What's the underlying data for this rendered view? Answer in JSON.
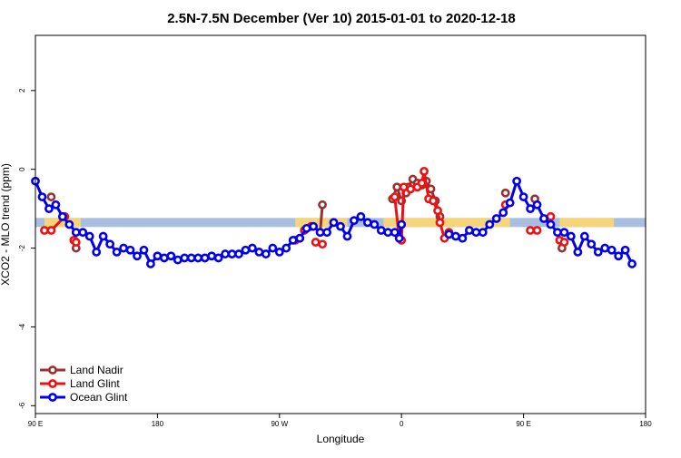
{
  "chart_data": {
    "type": "line",
    "title": "2.5N-7.5N December (Ver 10)   2015-01-01 to 2020-12-18",
    "xlabel": "Longitude",
    "ylabel": "XCO2 - MLO trend (ppm)",
    "xlim": [
      -90,
      180
    ],
    "ylim": [
      -6.2,
      3.4
    ],
    "x_ticks": [
      {
        "value": -90,
        "label": "90 E"
      },
      {
        "value": -36,
        "label": "180"
      },
      {
        "value": 18,
        "label": "90 W"
      },
      {
        "value": 72,
        "label": "0"
      },
      {
        "value": 126,
        "label": "90 E"
      },
      {
        "value": 180,
        "label": "180"
      }
    ],
    "y_ticks": [
      {
        "value": -6,
        "label": "-6"
      },
      {
        "value": -4,
        "label": "-4"
      },
      {
        "value": -2,
        "label": "-2"
      },
      {
        "value": 0,
        "label": "0"
      },
      {
        "value": 2,
        "label": "2"
      }
    ],
    "band": {
      "y": -1.35,
      "x_range": [
        -90,
        180
      ],
      "color": "#a8bfe0"
    },
    "land_bands": [
      {
        "x_range": [
          -86,
          -70
        ],
        "color": "#f5d47a"
      },
      {
        "x_range": [
          25,
          48
        ],
        "color": "#f5d47a"
      },
      {
        "x_range": [
          64,
          120
        ],
        "color": "#f5d47a"
      },
      {
        "x_range": [
          142,
          166
        ],
        "color": "#f5d47a"
      }
    ],
    "series": [
      {
        "name": "Land Nadir",
        "color": "#9b3030",
        "segments": [
          [
            {
              "x": -83,
              "y": -0.7
            }
          ],
          [
            {
              "x": -72,
              "y": -2.0
            }
          ],
          [
            {
              "x": 37,
              "y": -0.9
            },
            {
              "x": 36,
              "y": -1.6
            }
          ],
          [
            {
              "x": 68,
              "y": -0.75
            },
            {
              "x": 70,
              "y": -0.45
            },
            {
              "x": 72,
              "y": -0.8
            },
            {
              "x": 74,
              "y": -0.6
            },
            {
              "x": 75,
              "y": -0.45
            },
            {
              "x": 77,
              "y": -0.25
            },
            {
              "x": 79,
              "y": -0.35
            },
            {
              "x": 81,
              "y": -0.4
            },
            {
              "x": 83,
              "y": -0.3
            },
            {
              "x": 85,
              "y": -0.5
            },
            {
              "x": 87,
              "y": -0.8
            },
            {
              "x": 89,
              "y": -1.2
            }
          ],
          [
            {
              "x": 118,
              "y": -0.6
            }
          ],
          [
            {
              "x": 131,
              "y": -0.75
            }
          ],
          [
            {
              "x": 143,
              "y": -2.0
            }
          ]
        ]
      },
      {
        "name": "Land Glint",
        "color": "#ee1111",
        "segments": [
          [
            {
              "x": -86,
              "y": -1.55
            },
            {
              "x": -83,
              "y": -1.55
            },
            {
              "x": -77,
              "y": -1.2
            }
          ],
          [
            {
              "x": -73,
              "y": -1.8
            },
            {
              "x": -72,
              "y": -1.85
            }
          ],
          [
            {
              "x": 25,
              "y": -1.8
            },
            {
              "x": 27,
              "y": -1.75
            },
            {
              "x": 29,
              "y": -1.55
            },
            {
              "x": 32,
              "y": -1.45
            }
          ],
          [
            {
              "x": 34,
              "y": -1.85
            },
            {
              "x": 37,
              "y": -1.9
            }
          ],
          [
            {
              "x": 69,
              "y": -0.7
            },
            {
              "x": 71,
              "y": -1.75
            },
            {
              "x": 72,
              "y": -1.8
            },
            {
              "x": 73,
              "y": -0.45
            },
            {
              "x": 76,
              "y": -0.5
            },
            {
              "x": 79,
              "y": -0.45
            },
            {
              "x": 81,
              "y": -0.35
            },
            {
              "x": 82,
              "y": -0.05
            },
            {
              "x": 84,
              "y": -0.75
            },
            {
              "x": 86,
              "y": -0.8
            },
            {
              "x": 88,
              "y": -1.05
            },
            {
              "x": 89,
              "y": -1.35
            },
            {
              "x": 91,
              "y": -1.75
            },
            {
              "x": 93,
              "y": -1.6
            }
          ],
          [
            {
              "x": 118,
              "y": -0.9
            }
          ],
          [
            {
              "x": 129,
              "y": -1.55
            },
            {
              "x": 132,
              "y": -1.55
            }
          ],
          [
            {
              "x": 138,
              "y": -1.2
            }
          ],
          [
            {
              "x": 142,
              "y": -1.8
            },
            {
              "x": 144,
              "y": -1.85
            }
          ]
        ]
      },
      {
        "name": "Ocean Glint",
        "color": "#0000ee",
        "segments": [
          [
            {
              "x": -90,
              "y": -0.3
            },
            {
              "x": -87,
              "y": -0.7
            },
            {
              "x": -84,
              "y": -1.0
            },
            {
              "x": -81,
              "y": -0.9
            },
            {
              "x": -78,
              "y": -1.2
            },
            {
              "x": -75,
              "y": -1.4
            },
            {
              "x": -72,
              "y": -1.6
            },
            {
              "x": -69,
              "y": -1.6
            },
            {
              "x": -66,
              "y": -1.7
            },
            {
              "x": -63,
              "y": -2.1
            },
            {
              "x": -60,
              "y": -1.7
            },
            {
              "x": -57,
              "y": -1.9
            },
            {
              "x": -54,
              "y": -2.1
            },
            {
              "x": -51,
              "y": -2.0
            },
            {
              "x": -48,
              "y": -2.05
            },
            {
              "x": -45,
              "y": -2.2
            },
            {
              "x": -42,
              "y": -2.05
            },
            {
              "x": -39,
              "y": -2.4
            },
            {
              "x": -36,
              "y": -2.2
            },
            {
              "x": -33,
              "y": -2.25
            },
            {
              "x": -30,
              "y": -2.2
            },
            {
              "x": -27,
              "y": -2.3
            },
            {
              "x": -24,
              "y": -2.25
            },
            {
              "x": -21,
              "y": -2.25
            },
            {
              "x": -18,
              "y": -2.25
            },
            {
              "x": -15,
              "y": -2.25
            },
            {
              "x": -12,
              "y": -2.2
            },
            {
              "x": -9,
              "y": -2.25
            },
            {
              "x": -6,
              "y": -2.15
            },
            {
              "x": -3,
              "y": -2.15
            },
            {
              "x": 0,
              "y": -2.15
            },
            {
              "x": 3,
              "y": -2.05
            },
            {
              "x": 6,
              "y": -2.0
            },
            {
              "x": 9,
              "y": -2.1
            },
            {
              "x": 12,
              "y": -2.15
            },
            {
              "x": 15,
              "y": -2.0
            },
            {
              "x": 18,
              "y": -2.1
            },
            {
              "x": 21,
              "y": -2.0
            },
            {
              "x": 24,
              "y": -1.8
            },
            {
              "x": 27,
              "y": -1.75
            },
            {
              "x": 30,
              "y": -1.5
            },
            {
              "x": 33,
              "y": -1.45
            },
            {
              "x": 36,
              "y": -1.6
            },
            {
              "x": 39,
              "y": -1.6
            },
            {
              "x": 42,
              "y": -1.35
            },
            {
              "x": 45,
              "y": -1.45
            },
            {
              "x": 48,
              "y": -1.7
            },
            {
              "x": 51,
              "y": -1.3
            },
            {
              "x": 54,
              "y": -1.2
            },
            {
              "x": 57,
              "y": -1.35
            },
            {
              "x": 60,
              "y": -1.4
            },
            {
              "x": 63,
              "y": -1.55
            },
            {
              "x": 66,
              "y": -1.6
            },
            {
              "x": 69,
              "y": -1.6
            },
            {
              "x": 71,
              "y": -1.75
            },
            {
              "x": 72,
              "y": -1.4
            }
          ],
          [
            {
              "x": 93,
              "y": -1.65
            },
            {
              "x": 96,
              "y": -1.7
            },
            {
              "x": 99,
              "y": -1.75
            },
            {
              "x": 102,
              "y": -1.55
            },
            {
              "x": 105,
              "y": -1.6
            },
            {
              "x": 108,
              "y": -1.6
            },
            {
              "x": 111,
              "y": -1.4
            },
            {
              "x": 114,
              "y": -1.25
            },
            {
              "x": 117,
              "y": -1.1
            },
            {
              "x": 120,
              "y": -0.85
            },
            {
              "x": 123,
              "y": -0.3
            },
            {
              "x": 126,
              "y": -0.7
            },
            {
              "x": 129,
              "y": -1.0
            },
            {
              "x": 132,
              "y": -0.9
            },
            {
              "x": 135,
              "y": -1.25
            },
            {
              "x": 138,
              "y": -1.4
            },
            {
              "x": 141,
              "y": -1.6
            },
            {
              "x": 144,
              "y": -1.6
            },
            {
              "x": 147,
              "y": -1.7
            },
            {
              "x": 150,
              "y": -2.1
            },
            {
              "x": 153,
              "y": -1.7
            },
            {
              "x": 156,
              "y": -1.9
            },
            {
              "x": 159,
              "y": -2.1
            },
            {
              "x": 162,
              "y": -2.0
            },
            {
              "x": 165,
              "y": -2.05
            },
            {
              "x": 168,
              "y": -2.2
            },
            {
              "x": 171,
              "y": -2.05
            },
            {
              "x": 174,
              "y": -2.4
            }
          ]
        ]
      }
    ],
    "legend": {
      "position": "bottom-left",
      "entries": [
        {
          "label": "Land Nadir",
          "color": "#9b3030"
        },
        {
          "label": "Land Glint",
          "color": "#ee1111"
        },
        {
          "label": "Ocean Glint",
          "color": "#0000ee"
        }
      ]
    }
  }
}
